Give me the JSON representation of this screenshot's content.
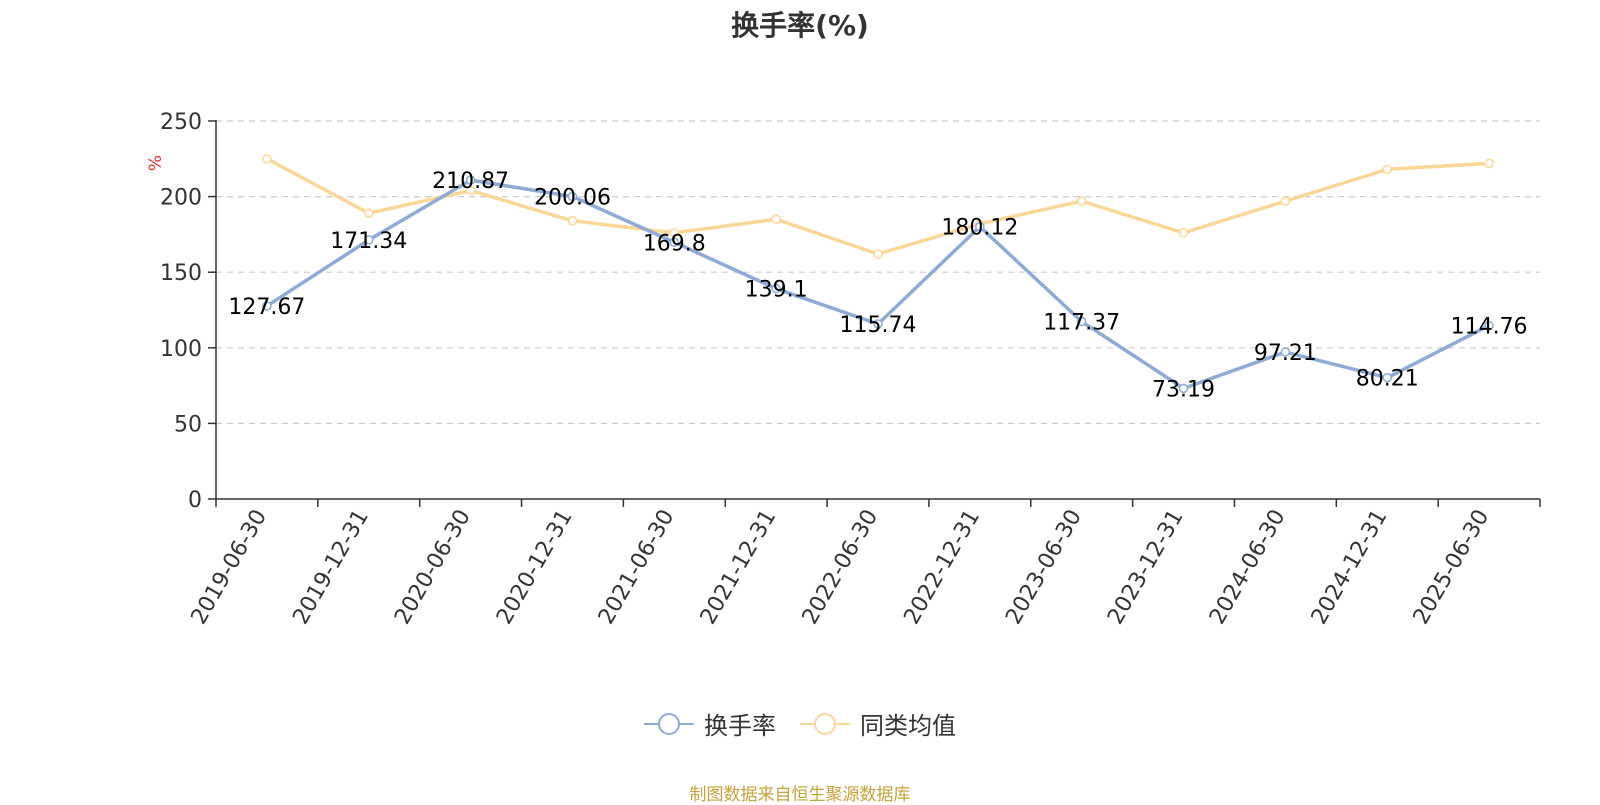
{
  "chart_data": {
    "type": "line",
    "title": "换手率(%)",
    "ylabel": "%",
    "xlabel": "",
    "ylim": [
      0,
      250
    ],
    "yticks": [
      0,
      50,
      100,
      150,
      200,
      250
    ],
    "grid": true,
    "legend_position": "bottom",
    "categories": [
      "2019-06-30",
      "2019-12-31",
      "2020-06-30",
      "2020-12-31",
      "2021-06-30",
      "2021-12-31",
      "2022-06-30",
      "2022-12-31",
      "2023-06-30",
      "2023-12-31",
      "2024-06-30",
      "2024-12-31",
      "2025-06-30"
    ],
    "series": [
      {
        "name": "换手率",
        "color": "#8eabd8",
        "show_labels": true,
        "values": [
          127.67,
          171.34,
          210.87,
          200.06,
          169.8,
          139.1,
          115.74,
          180.12,
          117.37,
          73.19,
          97.21,
          80.21,
          114.76
        ]
      },
      {
        "name": "同类均值",
        "color": "#fad797",
        "show_labels": false,
        "values": [
          225,
          189,
          204,
          184,
          176,
          185,
          162,
          182,
          197,
          176,
          197,
          218,
          222
        ]
      }
    ]
  },
  "legend": [
    {
      "label": "换手率",
      "color": "#8eabd8"
    },
    {
      "label": "同类均值",
      "color": "#fad797"
    }
  ],
  "source": "制图数据来自恒生聚源数据库",
  "colors": {
    "axis": "#333333",
    "grid": "#cccccc",
    "ylabel": "#e03030",
    "source": "#c9a13b"
  }
}
